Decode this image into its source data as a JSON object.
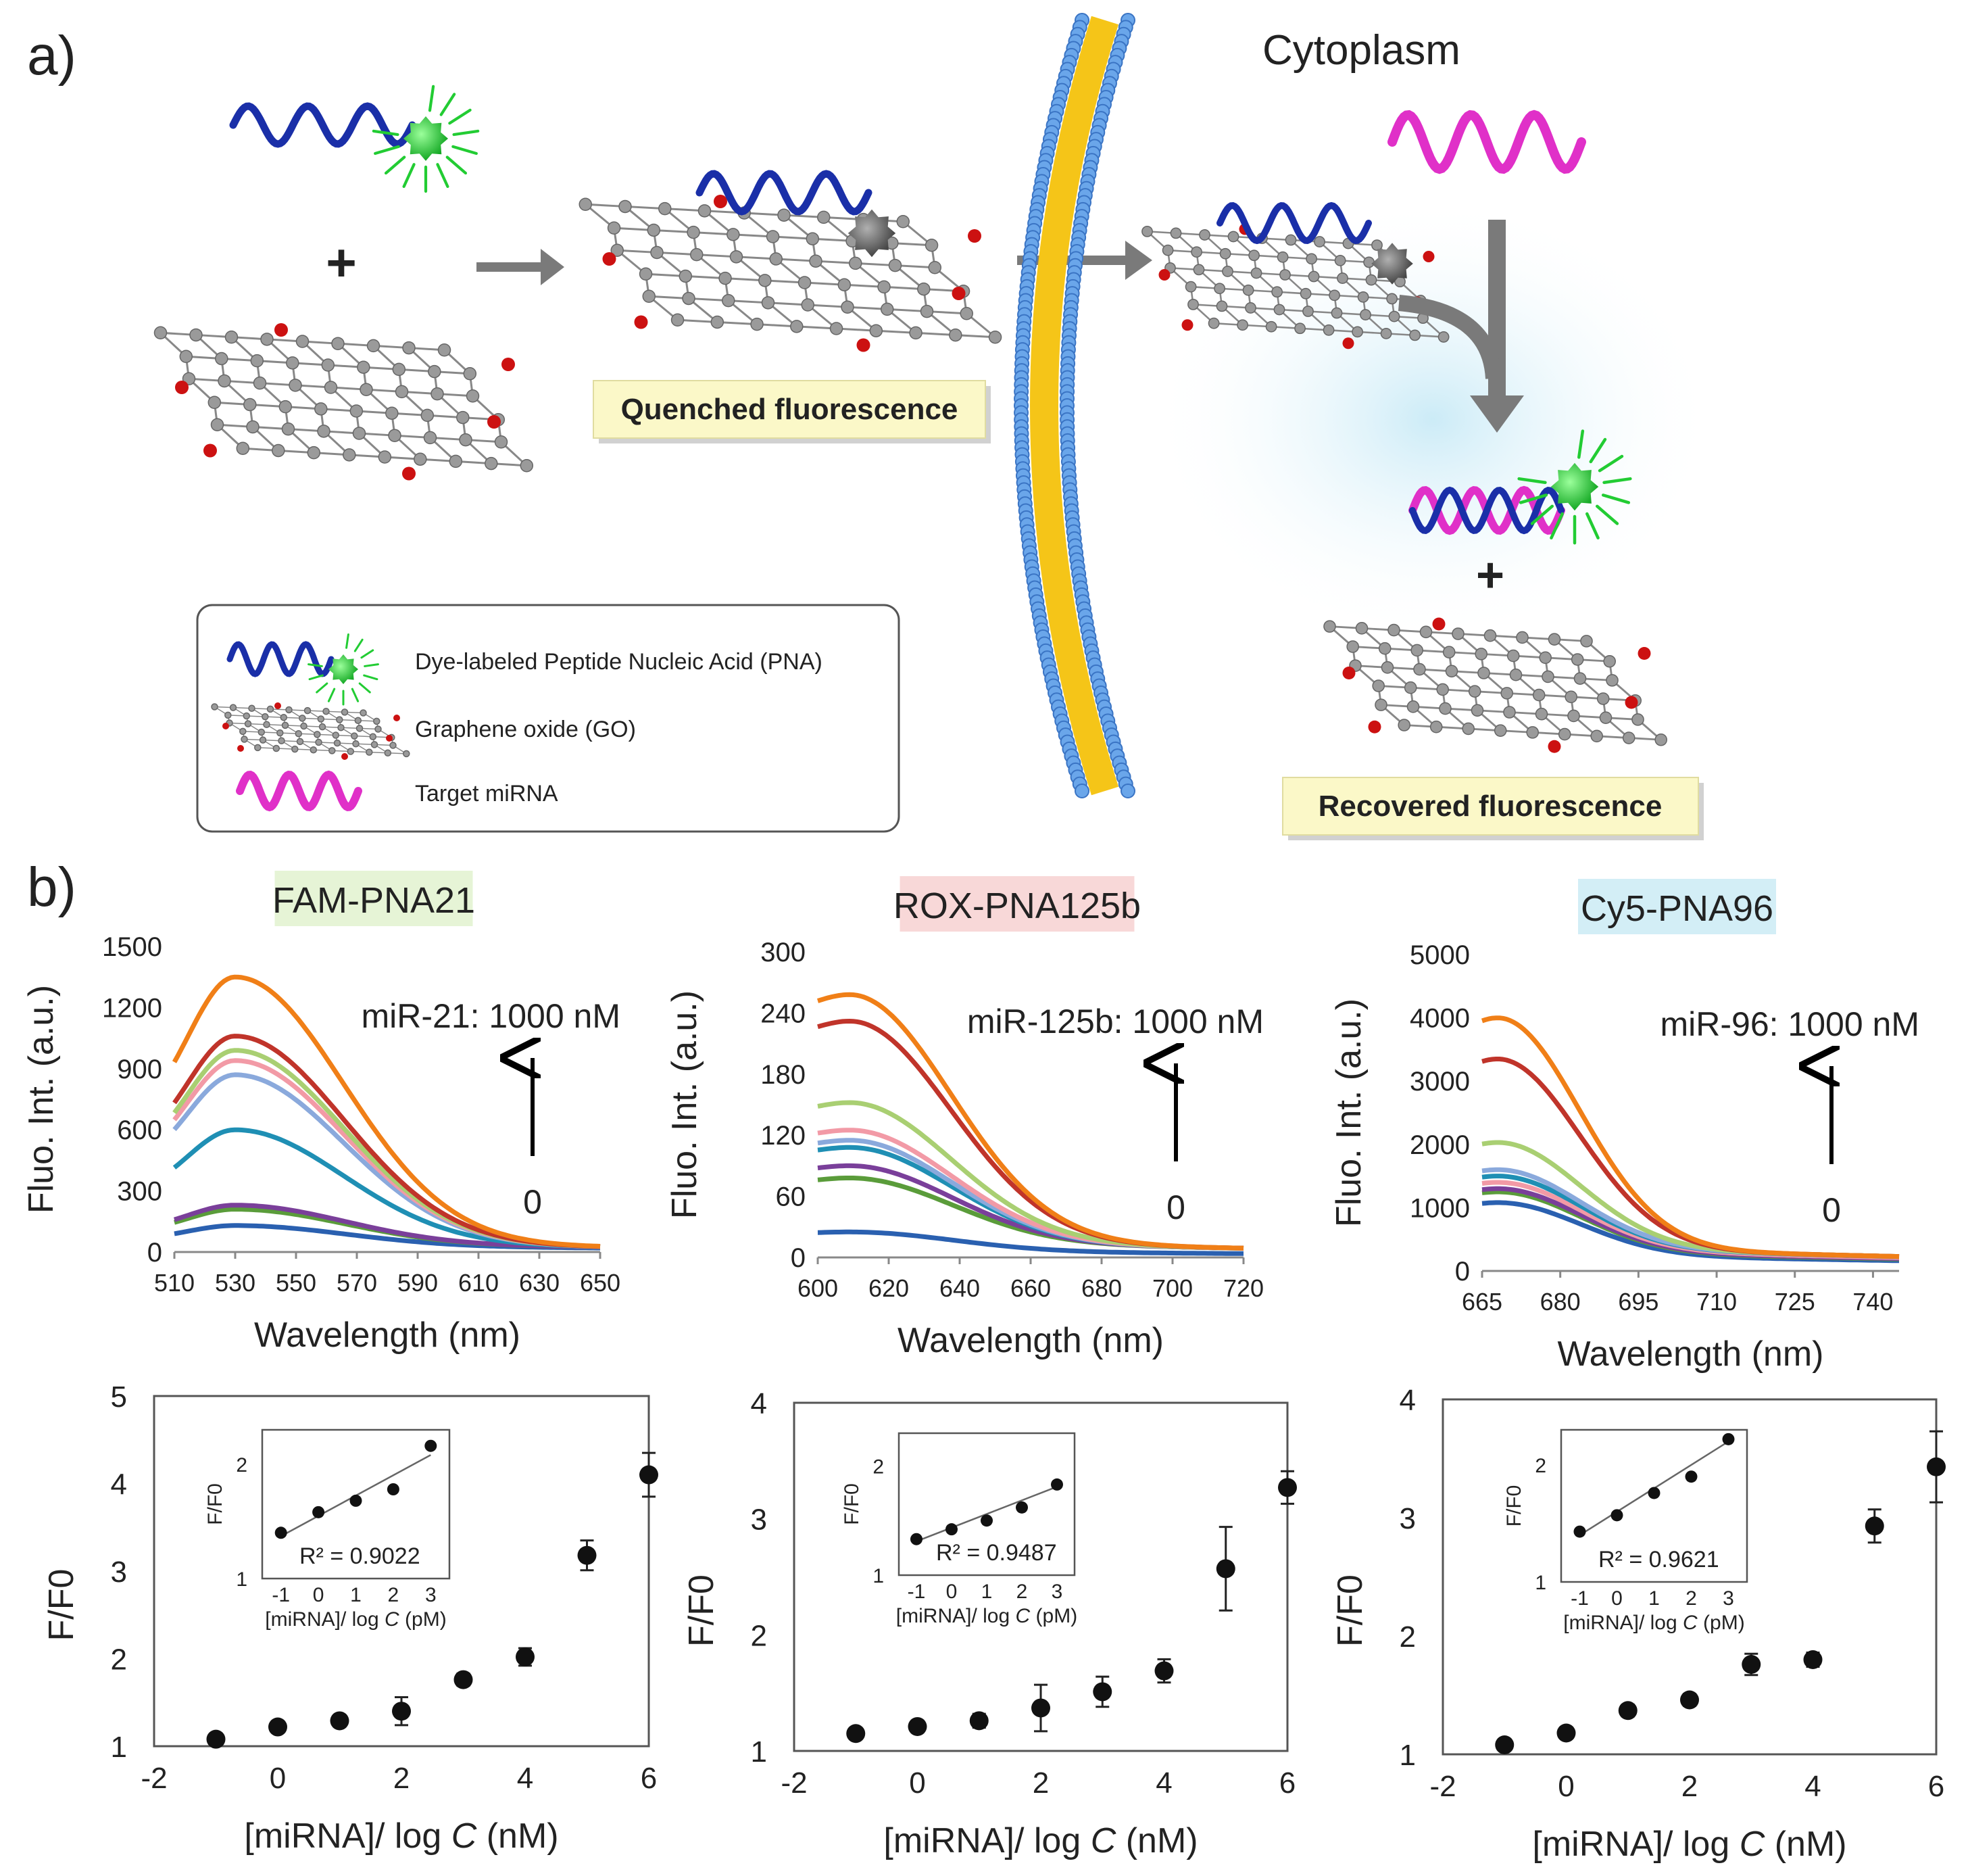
{
  "panel_a": {
    "label": "a)",
    "cytoplasm": "Cytoplasm",
    "plus": "+",
    "quenched": "Quenched fluorescence",
    "recovered": "Recovered fluorescence",
    "legend": [
      "Dye-labeled Peptide Nucleic Acid (PNA)",
      "Graphene oxide (GO)",
      "Target miRNA"
    ],
    "colors": {
      "pna": "#1a2fa8",
      "mirna": "#e030c8",
      "dye_on": "#22cc33",
      "dye_off": "#777777",
      "membrane_head": "#6aa6ea",
      "membrane_tail": "#f5c518",
      "arrow": "#7a7a7a",
      "label_box": "#fbf8c8",
      "graphene_atom": "#9a9a9a",
      "oxygen": "#cc1111"
    }
  },
  "panel_b": {
    "label": "b)",
    "spectra": [
      {
        "title": "FAM-PNA21",
        "title_bg": "#e6f4d6",
        "annotation": "miR-21: 1000 nM",
        "zero": "0",
        "ylabel": "Fluo. Int. (a.u.)",
        "xlabel": "Wavelength (nm)",
        "xlim": [
          510,
          650
        ],
        "ylim": [
          0,
          1500
        ],
        "xticks": [
          "510",
          "530",
          "550",
          "570",
          "590",
          "610",
          "630",
          "650"
        ],
        "yticks": [
          "0",
          "300",
          "600",
          "900",
          "1200",
          "1500"
        ],
        "peak": 530,
        "decay": 50,
        "rise": 22,
        "tail": 40,
        "curves": [
          {
            "peak": 1350,
            "color": "#f07f17"
          },
          {
            "peak": 1060,
            "color": "#c0342a"
          },
          {
            "peak": 990,
            "color": "#a9cf72"
          },
          {
            "peak": 940,
            "color": "#f29aa6"
          },
          {
            "peak": 870,
            "color": "#8aa9dc"
          },
          {
            "peak": 600,
            "color": "#1f8fb4"
          },
          {
            "peak": 230,
            "color": "#7a3f9a"
          },
          {
            "peak": 210,
            "color": "#5a9c3a"
          },
          {
            "peak": 130,
            "color": "#2a60b0"
          }
        ]
      },
      {
        "title": "ROX-PNA125b",
        "title_bg": "#f8d8d8",
        "annotation": "miR-125b: 1000 nM",
        "zero": "0",
        "ylabel": "Fluo. Int. (a.u.)",
        "xlabel": "Wavelength (nm)",
        "xlim": [
          600,
          720
        ],
        "ylim": [
          0,
          300
        ],
        "xticks": [
          "600",
          "620",
          "640",
          "660",
          "680",
          "700",
          "720"
        ],
        "yticks": [
          "0",
          "60",
          "120",
          "180",
          "240",
          "300"
        ],
        "peak": 609,
        "decay": 40,
        "rise": 14,
        "tail": 15,
        "curves": [
          {
            "peak": 258,
            "color": "#f07f17"
          },
          {
            "peak": 232,
            "color": "#c0342a"
          },
          {
            "peak": 152,
            "color": "#a9cf72"
          },
          {
            "peak": 125,
            "color": "#f29aa6"
          },
          {
            "peak": 115,
            "color": "#8aa9dc"
          },
          {
            "peak": 108,
            "color": "#1f8fb4"
          },
          {
            "peak": 90,
            "color": "#7a3f9a"
          },
          {
            "peak": 78,
            "color": "#5a9c3a"
          },
          {
            "peak": 25,
            "color": "#2a60b0"
          }
        ]
      },
      {
        "title": "Cy5-PNA96",
        "title_bg": "#d3eef6",
        "annotation": "miR-96: 1000 nM",
        "zero": "0",
        "ylabel": "Fluo. Int. (a.u.)",
        "xlabel": "Wavelength (nm)",
        "xlim": [
          665,
          745
        ],
        "ylim": [
          0,
          5000
        ],
        "xticks": [
          "665",
          "680",
          "695",
          "710",
          "725",
          "740"
        ],
        "yticks": [
          "0",
          "1000",
          "2000",
          "3000",
          "4000",
          "5000"
        ],
        "peak": 668,
        "decay": 22,
        "rise": 7,
        "tail": 380,
        "curves": [
          {
            "peak": 4000,
            "color": "#f07f17"
          },
          {
            "peak": 3350,
            "color": "#c0342a"
          },
          {
            "peak": 2030,
            "color": "#a9cf72"
          },
          {
            "peak": 1600,
            "color": "#8aa9dc"
          },
          {
            "peak": 1500,
            "color": "#1f8fb4"
          },
          {
            "peak": 1400,
            "color": "#f29aa6"
          },
          {
            "peak": 1300,
            "color": "#7a3f9a"
          },
          {
            "peak": 1250,
            "color": "#5a9c3a"
          },
          {
            "peak": 1080,
            "color": "#2a60b0"
          }
        ]
      }
    ],
    "ratios": [
      {
        "ylabel": "F/F0",
        "xlabel_pre": "[miRNA]/ log ",
        "xlabel_var": "C",
        "xlabel_post": " (nM)",
        "xlim": [
          -2,
          6
        ],
        "ylim": [
          1,
          5
        ],
        "xticks": [
          "-2",
          "0",
          "2",
          "4",
          "6"
        ],
        "yticks": [
          "1",
          "2",
          "3",
          "4",
          "5"
        ],
        "x": [
          -1,
          0,
          1,
          2,
          3,
          4,
          5,
          6
        ],
        "y": [
          1.08,
          1.22,
          1.29,
          1.4,
          1.76,
          2.02,
          3.18,
          4.1
        ],
        "err": [
          0.04,
          0.05,
          0.06,
          0.16,
          0.07,
          0.1,
          0.17,
          0.25
        ],
        "inset": {
          "ylabel": "F/F0",
          "xlabel_pre": "[miRNA]/ log ",
          "xlabel_var": "C",
          "xlabel_post": " (pM)",
          "r2": "R² = 0.9022",
          "xticks": [
            "-1",
            "0",
            "1",
            "2",
            "3"
          ],
          "yticks": [
            "1",
            "2"
          ],
          "ylim": [
            1,
            2.3
          ],
          "x": [
            -1,
            0,
            1,
            2,
            3
          ],
          "y": [
            1.4,
            1.58,
            1.68,
            1.78,
            2.16
          ],
          "fit": [
            1.37,
            2.08
          ]
        }
      },
      {
        "ylabel": "F/F0",
        "xlabel_pre": "[miRNA]/ log ",
        "xlabel_var": "C",
        "xlabel_post": " (nM)",
        "xlim": [
          -2,
          6
        ],
        "ylim": [
          1,
          4
        ],
        "xticks": [
          "-2",
          "0",
          "2",
          "4",
          "6"
        ],
        "yticks": [
          "1",
          "2",
          "3",
          "4"
        ],
        "x": [
          -1,
          0,
          1,
          2,
          3,
          4,
          5,
          6
        ],
        "y": [
          1.15,
          1.21,
          1.26,
          1.37,
          1.51,
          1.69,
          2.57,
          3.27
        ],
        "err": [
          0.04,
          0.05,
          0.06,
          0.2,
          0.13,
          0.1,
          0.36,
          0.14
        ],
        "inset": {
          "ylabel": "F/F0",
          "xlabel_pre": "[miRNA]/ log ",
          "xlabel_var": "C",
          "xlabel_post": " (pM)",
          "r2": "R² = 0.9487",
          "xticks": [
            "-1",
            "0",
            "1",
            "2",
            "3"
          ],
          "yticks": [
            "1",
            "2"
          ],
          "ylim": [
            1,
            2.3
          ],
          "x": [
            -1,
            0,
            1,
            2,
            3
          ],
          "y": [
            1.33,
            1.42,
            1.5,
            1.62,
            1.83
          ],
          "fit": [
            1.31,
            1.81
          ]
        }
      },
      {
        "ylabel": "F/F0",
        "xlabel_pre": "[miRNA]/ log ",
        "xlabel_var": "C",
        "xlabel_post": " (nM)",
        "xlim": [
          -2,
          6
        ],
        "ylim": [
          1,
          4
        ],
        "xticks": [
          "-2",
          "0",
          "2",
          "4",
          "6"
        ],
        "yticks": [
          "1",
          "2",
          "3",
          "4"
        ],
        "x": [
          -1,
          0,
          1,
          2,
          3,
          4,
          5,
          6
        ],
        "y": [
          1.08,
          1.18,
          1.37,
          1.46,
          1.76,
          1.8,
          2.93,
          3.43
        ],
        "err": [
          0.03,
          0.04,
          0.05,
          0.05,
          0.09,
          0.06,
          0.14,
          0.3
        ],
        "inset": {
          "ylabel": "F/F0",
          "xlabel_pre": "[miRNA]/ log ",
          "xlabel_var": "C",
          "xlabel_post": " (pM)",
          "r2": "R² = 0.9621",
          "xticks": [
            "-1",
            "0",
            "1",
            "2",
            "3"
          ],
          "yticks": [
            "1",
            "2"
          ],
          "ylim": [
            1,
            2.3
          ],
          "x": [
            -1,
            0,
            1,
            2,
            3
          ],
          "y": [
            1.43,
            1.57,
            1.76,
            1.9,
            2.22
          ],
          "fit": [
            1.4,
            2.2
          ]
        }
      }
    ]
  }
}
